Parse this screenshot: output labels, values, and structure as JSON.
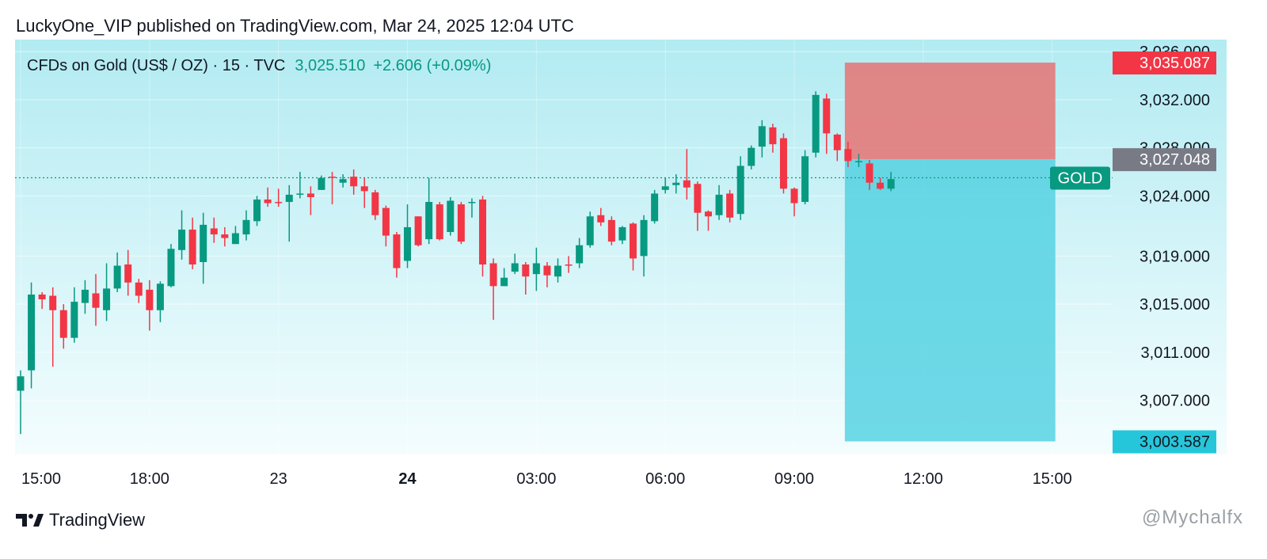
{
  "header": {
    "published_line": "LuckyOne_VIP published on TradingView.com, Mar 24, 2025 12:04 UTC"
  },
  "legend": {
    "symbol_line": "CFDs on Gold (US$ / OZ) · 15 · TVC",
    "last_price": "3,025.510",
    "change": "+2.606 (+0.09%)"
  },
  "footer": {
    "brand": "TradingView",
    "watermark": "@Mychalfx"
  },
  "colors": {
    "up": "#089981",
    "down": "#f23645",
    "background_top": "#b2ebf2",
    "background_bottom": "#f4fdfe",
    "target_zone": "#4dd0e1",
    "stop_zone": "#e57373"
  },
  "chart_data": {
    "type": "candlestick",
    "interval": "15",
    "ylim": [
      3002.5,
      3037.0
    ],
    "y_ticks": [
      "3,007.000",
      "3,011.000",
      "3,015.000",
      "3,019.000",
      "3,024.000",
      "3,028.000",
      "3,032.000",
      "3,036.000"
    ],
    "y_tick_values": [
      3007,
      3011,
      3015,
      3019,
      3024,
      3028,
      3032,
      3036
    ],
    "x_ticks": [
      "15:00",
      "18:00",
      "23",
      "24",
      "03:00",
      "06:00",
      "09:00",
      "12:00",
      "15:00"
    ],
    "x_tick_bars": [
      0,
      12,
      24,
      36,
      48,
      60,
      72,
      84,
      96
    ],
    "x_tick_bold": [
      false,
      false,
      false,
      true,
      false,
      false,
      false,
      false,
      false
    ],
    "price_labels": [
      {
        "label": "3,035.087",
        "value": 3035.087,
        "color": "#f23645"
      },
      {
        "label": "3,027.048",
        "value": 3027.048,
        "color": "#787b86"
      },
      {
        "label": "3,003.587",
        "value": 3003.587,
        "color": "#26c6da"
      }
    ],
    "symbol_tag": "GOLD",
    "last_price_value": 3025.51,
    "position": {
      "type": "short",
      "entry": 3027.048,
      "stop": 3035.087,
      "target": 3003.587,
      "start_bar": 77,
      "end_bar": 96
    },
    "candles": [
      [
        3007.8,
        3009.0,
        3004.2,
        3009.5
      ],
      [
        3009.5,
        3015.8,
        3008.0,
        3016.8
      ],
      [
        3015.8,
        3015.4,
        3014.6,
        3016.0
      ],
      [
        3015.7,
        3014.5,
        3009.8,
        3016.4
      ],
      [
        3014.5,
        3012.2,
        3011.3,
        3015.0
      ],
      [
        3012.2,
        3015.2,
        3011.8,
        3016.4
      ],
      [
        3015.1,
        3016.2,
        3014.2,
        3017.0
      ],
      [
        3015.9,
        3014.7,
        3013.2,
        3017.5
      ],
      [
        3014.5,
        3016.3,
        3013.6,
        3018.4
      ],
      [
        3016.3,
        3018.2,
        3016.0,
        3019.3
      ],
      [
        3018.3,
        3016.8,
        3015.7,
        3019.5
      ],
      [
        3016.8,
        3015.7,
        3015.1,
        3017.1
      ],
      [
        3016.2,
        3014.5,
        3012.8,
        3017.0
      ],
      [
        3014.5,
        3016.7,
        3013.5,
        3016.9
      ],
      [
        3016.5,
        3019.6,
        3016.4,
        3020.0
      ],
      [
        3019.5,
        3021.2,
        3018.7,
        3022.8
      ],
      [
        3021.2,
        3018.3,
        3017.9,
        3022.2
      ],
      [
        3018.5,
        3021.6,
        3016.7,
        3022.6
      ],
      [
        3021.3,
        3020.8,
        3020.1,
        3022.2
      ],
      [
        3020.8,
        3020.5,
        3019.8,
        3021.4
      ],
      [
        3020.0,
        3020.9,
        3020.0,
        3021.5
      ],
      [
        3020.8,
        3022.0,
        3020.3,
        3022.8
      ],
      [
        3021.9,
        3023.7,
        3021.5,
        3024.0
      ],
      [
        3023.7,
        3023.4,
        3023.1,
        3024.7
      ],
      [
        3023.5,
        3023.4,
        3023.1,
        3024.6
      ],
      [
        3023.5,
        3024.1,
        3020.2,
        3024.9
      ],
      [
        3024.1,
        3024.2,
        3023.8,
        3026.0
      ],
      [
        3024.2,
        3023.9,
        3022.4,
        3024.8
      ],
      [
        3024.5,
        3025.5,
        3024.5,
        3025.7
      ],
      [
        3025.6,
        3025.5,
        3023.3,
        3026.0
      ],
      [
        3025.1,
        3025.4,
        3024.7,
        3025.8
      ],
      [
        3025.6,
        3024.8,
        3024.1,
        3026.2
      ],
      [
        3024.8,
        3024.4,
        3023.0,
        3025.5
      ],
      [
        3024.3,
        3022.4,
        3022.0,
        3024.5
      ],
      [
        3023.0,
        3020.7,
        3019.8,
        3023.2
      ],
      [
        3020.8,
        3018.0,
        3017.2,
        3021.0
      ],
      [
        3018.6,
        3021.4,
        3018.0,
        3023.3
      ],
      [
        3022.3,
        3019.9,
        3019.8,
        3022.3
      ],
      [
        3020.4,
        3023.5,
        3020.0,
        3025.5
      ],
      [
        3023.3,
        3020.4,
        3020.3,
        3023.5
      ],
      [
        3021.0,
        3023.6,
        3020.7,
        3023.9
      ],
      [
        3023.3,
        3020.2,
        3020.0,
        3023.5
      ],
      [
        3023.4,
        3023.5,
        3022.2,
        3023.8
      ],
      [
        3023.7,
        3018.3,
        3017.3,
        3024.0
      ],
      [
        3018.4,
        3016.5,
        3013.7,
        3018.8
      ],
      [
        3016.5,
        3017.2,
        3016.5,
        3018.0
      ],
      [
        3017.7,
        3018.4,
        3017.5,
        3019.2
      ],
      [
        3018.3,
        3017.3,
        3015.8,
        3018.5
      ],
      [
        3017.5,
        3018.4,
        3016.1,
        3019.7
      ],
      [
        3018.2,
        3017.4,
        3016.4,
        3018.5
      ],
      [
        3017.3,
        3018.2,
        3016.8,
        3018.8
      ],
      [
        3018.3,
        3018.2,
        3017.6,
        3019.0
      ],
      [
        3018.4,
        3019.9,
        3018.0,
        3020.5
      ],
      [
        3019.9,
        3022.3,
        3019.7,
        3022.7
      ],
      [
        3022.4,
        3021.8,
        3021.5,
        3023.0
      ],
      [
        3022.0,
        3020.2,
        3019.9,
        3022.3
      ],
      [
        3020.3,
        3021.4,
        3020.0,
        3021.5
      ],
      [
        3021.7,
        3018.8,
        3017.8,
        3021.8
      ],
      [
        3019.0,
        3022.0,
        3017.3,
        3022.4
      ],
      [
        3021.9,
        3024.2,
        3021.7,
        3024.5
      ],
      [
        3024.5,
        3024.8,
        3024.2,
        3025.5
      ],
      [
        3024.9,
        3025.1,
        3024.2,
        3025.8
      ],
      [
        3025.3,
        3024.7,
        3023.7,
        3027.9
      ],
      [
        3025.0,
        3022.6,
        3021.1,
        3025.2
      ],
      [
        3022.7,
        3022.3,
        3021.1,
        3022.8
      ],
      [
        3022.4,
        3024.1,
        3022.0,
        3024.9
      ],
      [
        3024.2,
        3022.2,
        3021.8,
        3024.5
      ],
      [
        3022.5,
        3026.5,
        3022.0,
        3027.3
      ],
      [
        3026.5,
        3028.0,
        3026.2,
        3028.2
      ],
      [
        3028.1,
        3029.8,
        3027.2,
        3030.3
      ],
      [
        3029.7,
        3028.3,
        3027.6,
        3030.0
      ],
      [
        3028.8,
        3024.6,
        3024.2,
        3029.2
      ],
      [
        3024.6,
        3023.4,
        3022.3,
        3024.7
      ],
      [
        3023.5,
        3027.3,
        3023.3,
        3027.8
      ],
      [
        3027.6,
        3032.4,
        3027.2,
        3032.7
      ],
      [
        3032.1,
        3029.2,
        3027.5,
        3032.5
      ],
      [
        3029.1,
        3027.8,
        3026.9,
        3029.2
      ],
      [
        3027.9,
        3026.9,
        3026.4,
        3028.5
      ],
      [
        3026.8,
        3026.9,
        3026.4,
        3027.5
      ],
      [
        3026.7,
        3025.1,
        3024.5,
        3027.0
      ],
      [
        3025.1,
        3024.6,
        3024.5,
        3025.5
      ],
      [
        3024.6,
        3025.4,
        3024.4,
        3026.0
      ]
    ]
  }
}
